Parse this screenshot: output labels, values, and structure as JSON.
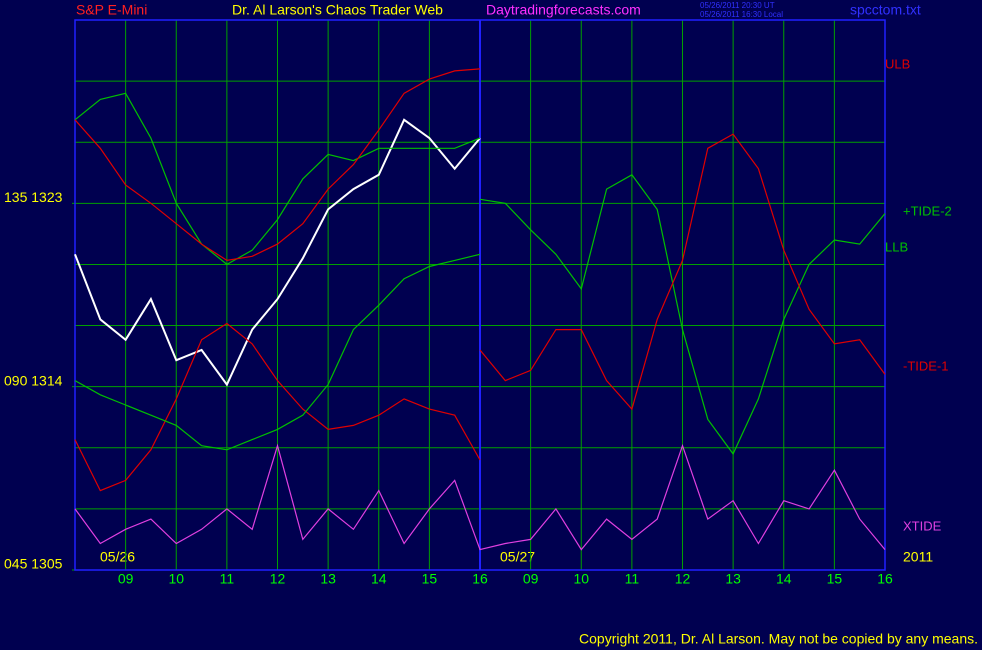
{
  "chart_data": {
    "type": "line",
    "title": "Dr. Al Larson's Chaos Trader Web",
    "symbol": "S&P E-Mini",
    "site": "Daytradingforecasts.com",
    "stamp": [
      "05/26/2011 20:30 UT",
      "05/26/2011 16:30 Local"
    ],
    "file": "spcctom.txt",
    "dates": [
      "05/26",
      "05/27",
      "2011"
    ],
    "copyright": "Copyright 2011, Dr. Al Larson. May not be copied by any means.",
    "x": [
      0,
      0.5,
      1,
      1.5,
      2,
      2.5,
      3,
      3.5,
      4,
      4.5,
      5,
      5.5,
      6,
      6.5,
      7,
      7.5,
      8,
      8.5,
      9,
      9.5,
      10,
      10.5,
      11,
      11.5,
      12,
      12.5,
      13,
      13.5,
      14,
      14.5,
      15,
      15.5,
      16
    ],
    "xlim": [
      0,
      16
    ],
    "xticks": [
      {
        "value": 1,
        "label": "09"
      },
      {
        "value": 2,
        "label": "10"
      },
      {
        "value": 3,
        "label": "11"
      },
      {
        "value": 4,
        "label": "12"
      },
      {
        "value": 5,
        "label": "13"
      },
      {
        "value": 6,
        "label": "14"
      },
      {
        "value": 7,
        "label": "15"
      },
      {
        "value": 8,
        "label": "16"
      },
      {
        "value": 9,
        "label": "09"
      },
      {
        "value": 10,
        "label": "10"
      },
      {
        "value": 11,
        "label": "11"
      },
      {
        "value": 12,
        "label": "12"
      },
      {
        "value": 13,
        "label": "13"
      },
      {
        "value": 14,
        "label": "14"
      },
      {
        "value": 15,
        "label": "15"
      },
      {
        "value": 16,
        "label": "16"
      }
    ],
    "ylim": [
      1305,
      1332
    ],
    "yticks": [
      {
        "value": 1323,
        "label": "135 1323"
      },
      {
        "value": 1314,
        "label": "090 1314"
      },
      {
        "value": 1305,
        "label": "045 1305"
      }
    ],
    "grid": true,
    "series": [
      {
        "color": "#ffffff",
        "values": [
          1320.5,
          1317.3,
          1316.3,
          1318.3,
          1315.3,
          1315.8,
          1314.1,
          1316.8,
          1318.3,
          1320.3,
          1322.7,
          1323.7,
          1324.4,
          1327.1,
          1326.2,
          1324.7,
          1326.2,
          null,
          null,
          null,
          null,
          null,
          null,
          null,
          null,
          null,
          null,
          null,
          null,
          null,
          null,
          null,
          null
        ]
      },
      {
        "color": "#00c000",
        "values": [
          1327.1,
          1328.1,
          1328.4,
          1326.2,
          1323.0,
          1321.0,
          1320.0,
          1320.7,
          1322.2,
          1324.2,
          1325.4,
          1325.1,
          1325.7,
          1325.7,
          1325.7,
          1325.7,
          1326.2,
          null,
          null,
          null,
          null,
          null,
          null,
          null,
          null,
          null,
          null,
          null,
          null,
          null,
          null,
          null,
          null
        ]
      },
      {
        "color": "#e00000",
        "values": [
          1311.4,
          1308.9,
          1309.4,
          1310.9,
          1313.4,
          1316.3,
          1317.1,
          1316.1,
          1314.3,
          1312.9,
          1311.9,
          1312.1,
          1312.6,
          1313.4,
          1312.9,
          1312.6,
          1310.4,
          null,
          null,
          null,
          null,
          null,
          null,
          null,
          null,
          null,
          null,
          null,
          null,
          null,
          null,
          null,
          null
        ]
      },
      {
        "name": "ULB",
        "color": "#e00000",
        "values": [
          1327.1,
          1325.7,
          1323.9,
          1323.0,
          1322.0,
          1321.0,
          1320.2,
          1320.4,
          1321.0,
          1322.0,
          1323.7,
          1324.9,
          1326.6,
          1328.4,
          1329.1,
          1329.5,
          1329.6,
          null,
          null,
          null,
          null,
          null,
          null,
          null,
          null,
          null,
          null,
          null,
          null,
          null,
          null,
          null,
          null
        ]
      },
      {
        "name": "+TIDE-2",
        "color": "#00c000",
        "values": [
          null,
          null,
          null,
          null,
          null,
          null,
          null,
          null,
          null,
          null,
          null,
          null,
          null,
          null,
          null,
          null,
          1323.2,
          1323.0,
          1321.7,
          1320.5,
          1318.8,
          1323.7,
          1324.4,
          1322.7,
          1316.8,
          1312.4,
          1310.7,
          1313.4,
          1317.3,
          1320.0,
          1321.2,
          1321.0,
          1322.5
        ]
      },
      {
        "name": "LLB",
        "color": "#00c000",
        "values": [
          1314.3,
          1313.6,
          1313.1,
          1312.6,
          1312.1,
          1311.1,
          1310.9,
          1311.4,
          1311.9,
          1312.6,
          1314.1,
          1316.8,
          1318.0,
          1319.3,
          1319.9,
          1320.2,
          1320.5,
          null,
          null,
          null,
          null,
          null,
          null,
          null,
          null,
          null,
          null,
          null,
          null,
          null,
          null,
          null,
          null
        ]
      },
      {
        "name": "-TIDE-1",
        "color": "#e00000",
        "values": [
          null,
          null,
          null,
          null,
          null,
          null,
          null,
          null,
          null,
          null,
          null,
          null,
          null,
          null,
          null,
          null,
          1315.8,
          1314.3,
          1314.8,
          1316.8,
          1316.8,
          1314.3,
          1312.9,
          1317.3,
          1320.2,
          1325.7,
          1326.4,
          1324.7,
          1320.7,
          1317.8,
          1316.1,
          1316.3,
          1314.6
        ]
      },
      {
        "name": "XTIDE",
        "color": "#e040e0",
        "values": [
          1308.0,
          1306.3,
          1307.0,
          1307.5,
          1306.3,
          1307.0,
          1308.0,
          1307.0,
          1311.1,
          1306.5,
          1308.0,
          1307.0,
          1308.9,
          1306.3,
          1308.0,
          1309.4,
          1306.0,
          1306.3,
          1306.5,
          1308.0,
          1306.0,
          1307.5,
          1306.5,
          1307.5,
          1311.1,
          1307.5,
          1308.4,
          1306.3,
          1308.4,
          1308.0,
          1309.9,
          1307.5,
          1306.0
        ]
      }
    ]
  }
}
